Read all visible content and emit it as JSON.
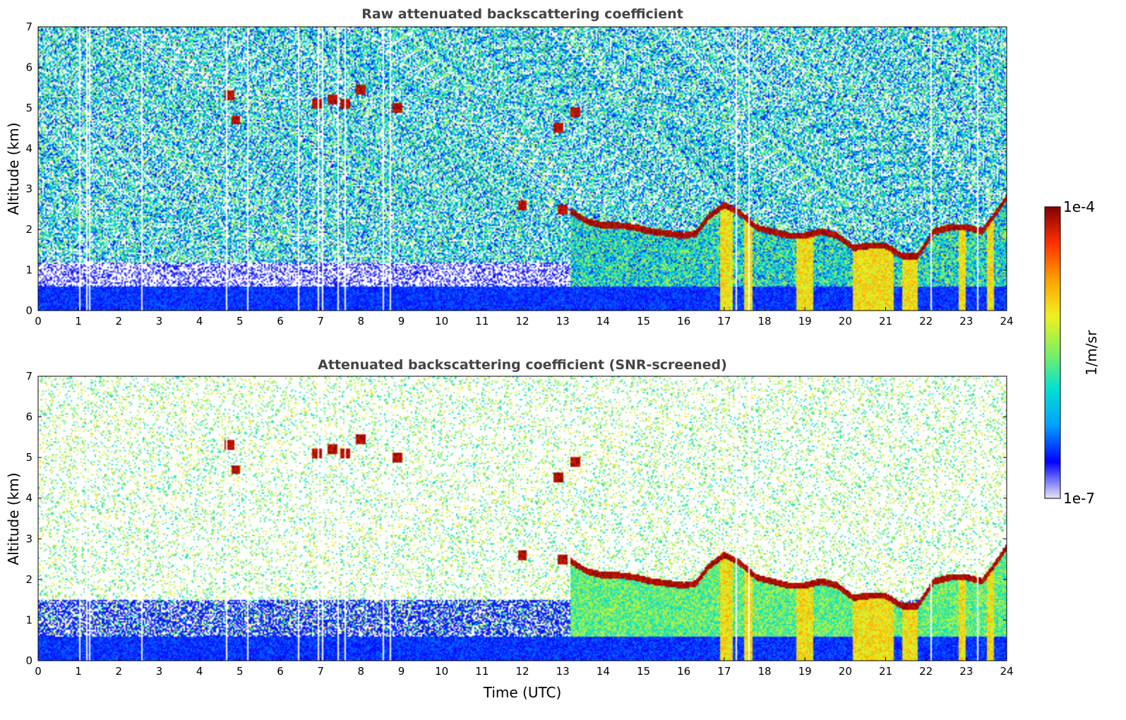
{
  "chart_data": [
    {
      "type": "heatmap",
      "title": "Raw attenuated backscattering coefficient",
      "xlabel": "",
      "ylabel": "Altitude (km)",
      "xlim": [
        0,
        24
      ],
      "ylim": [
        0,
        7
      ],
      "xticks": [
        "0",
        "1",
        "2",
        "3",
        "4",
        "5",
        "6",
        "7",
        "8",
        "9",
        "10",
        "11",
        "12",
        "13",
        "14",
        "15",
        "16",
        "17",
        "18",
        "19",
        "20",
        "21",
        "22",
        "23",
        "24"
      ],
      "yticks": [
        "0",
        "1",
        "2",
        "3",
        "4",
        "5",
        "6",
        "7"
      ],
      "screened": false
    },
    {
      "type": "heatmap",
      "title": "Attenuated backscattering coefficient (SNR-screened)",
      "xlabel": "Time (UTC)",
      "ylabel": "Altitude (km)",
      "xlim": [
        0,
        24
      ],
      "ylim": [
        0,
        7
      ],
      "xticks": [
        "0",
        "1",
        "2",
        "3",
        "4",
        "5",
        "6",
        "7",
        "8",
        "9",
        "10",
        "11",
        "12",
        "13",
        "14",
        "15",
        "16",
        "17",
        "18",
        "19",
        "20",
        "21",
        "22",
        "23",
        "24"
      ],
      "yticks": [
        "0",
        "1",
        "2",
        "3",
        "4",
        "5",
        "6",
        "7"
      ],
      "screened": true
    }
  ],
  "colorbar": {
    "label": "1/m/sr",
    "max_label": "1e-4",
    "min_label": "1e-7",
    "scale": "log",
    "range": [
      1e-07,
      0.0001
    ],
    "colormap": [
      "#e6e6f5",
      "#0000ff",
      "#00a0ff",
      "#00e0d0",
      "#80f060",
      "#f0f020",
      "#ffa000",
      "#ff3000",
      "#800000"
    ]
  },
  "features": {
    "boundary_layer_top_km": [
      [
        13.2,
        2.45
      ],
      [
        13.6,
        2.2
      ],
      [
        14.0,
        2.1
      ],
      [
        14.4,
        2.1
      ],
      [
        14.8,
        2.05
      ],
      [
        15.2,
        1.95
      ],
      [
        15.6,
        1.9
      ],
      [
        16.0,
        1.85
      ],
      [
        16.3,
        1.9
      ],
      [
        16.6,
        2.3
      ],
      [
        17.0,
        2.6
      ],
      [
        17.4,
        2.4
      ],
      [
        17.8,
        2.05
      ],
      [
        18.2,
        1.95
      ],
      [
        18.6,
        1.85
      ],
      [
        19.0,
        1.85
      ],
      [
        19.4,
        1.95
      ],
      [
        19.8,
        1.85
      ],
      [
        20.2,
        1.55
      ],
      [
        20.6,
        1.6
      ],
      [
        21.0,
        1.6
      ],
      [
        21.4,
        1.35
      ],
      [
        21.8,
        1.35
      ],
      [
        22.2,
        1.95
      ],
      [
        22.6,
        2.05
      ],
      [
        23.0,
        2.05
      ],
      [
        23.4,
        1.95
      ],
      [
        23.8,
        2.5
      ],
      [
        24.0,
        2.8
      ]
    ],
    "elevated_layers": [
      [
        4.75,
        5.3
      ],
      [
        4.9,
        4.7
      ],
      [
        6.9,
        5.1
      ],
      [
        7.3,
        5.2
      ],
      [
        7.6,
        5.1
      ],
      [
        8.0,
        5.45
      ],
      [
        8.9,
        5.0
      ],
      [
        12.0,
        2.6
      ],
      [
        12.9,
        4.5
      ],
      [
        13.3,
        4.9
      ],
      [
        13.0,
        2.5
      ]
    ],
    "precipitation_fallstreaks": [
      [
        16.9,
        17.2
      ],
      [
        17.5,
        17.7
      ],
      [
        18.8,
        19.2
      ],
      [
        20.2,
        21.2
      ],
      [
        21.4,
        21.8
      ],
      [
        22.8,
        23.0
      ],
      [
        23.5,
        23.7
      ]
    ],
    "missing_data_times": [
      1.0,
      1.18,
      1.27,
      2.55,
      4.67,
      5.17,
      6.45,
      6.92,
      7.03,
      7.4,
      7.6,
      8.52,
      8.72,
      17.3,
      17.6,
      22.1,
      23.25
    ]
  }
}
